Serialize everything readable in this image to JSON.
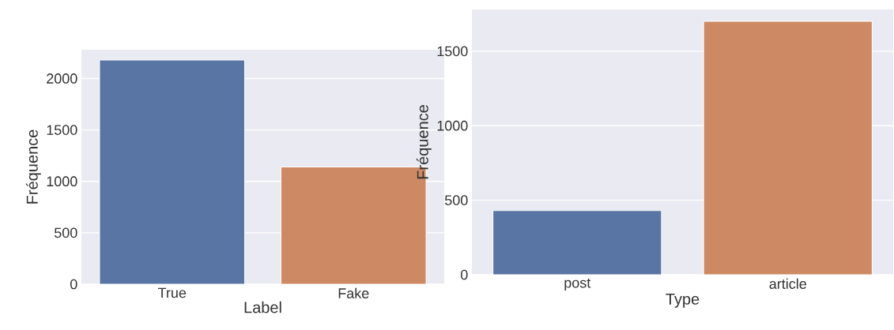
{
  "chart_data": [
    {
      "type": "bar",
      "xlabel": "Label",
      "ylabel": "Fréquence",
      "categories": [
        "True",
        "Fake"
      ],
      "values": [
        2180,
        1140
      ],
      "colors": [
        "#5975a4",
        "#cc8963"
      ],
      "ylim": [
        0,
        2280
      ],
      "yticks": [
        0,
        500,
        1000,
        1500,
        2000
      ],
      "grid": "y"
    },
    {
      "type": "bar",
      "xlabel": "Type",
      "ylabel": "Fréquence",
      "categories": [
        "post",
        "article"
      ],
      "values": [
        430,
        1700
      ],
      "colors": [
        "#5975a4",
        "#cc8963"
      ],
      "ylim": [
        0,
        1780
      ],
      "yticks": [
        0,
        500,
        1000,
        1500
      ],
      "grid": "y"
    }
  ]
}
